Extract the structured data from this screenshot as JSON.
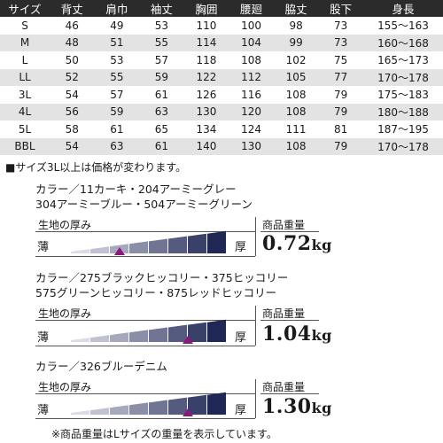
{
  "size_table": {
    "headers": [
      "サイズ",
      "背丈",
      "肩巾",
      "袖丈",
      "胸囲",
      "腰廻",
      "脇丈",
      "股下",
      "身長"
    ],
    "rows": [
      [
        "S",
        "46",
        "49",
        "53",
        "110",
        "100",
        "98",
        "73",
        "155〜163"
      ],
      [
        "M",
        "48",
        "51",
        "55",
        "114",
        "104",
        "99",
        "73",
        "160〜168"
      ],
      [
        "L",
        "50",
        "53",
        "57",
        "118",
        "108",
        "102",
        "75",
        "165〜173"
      ],
      [
        "LL",
        "52",
        "55",
        "59",
        "122",
        "112",
        "105",
        "77",
        "170〜178"
      ],
      [
        "3L",
        "54",
        "57",
        "61",
        "126",
        "116",
        "108",
        "79",
        "175〜183"
      ],
      [
        "4L",
        "56",
        "59",
        "63",
        "130",
        "120",
        "108",
        "79",
        "180〜188"
      ],
      [
        "5L",
        "58",
        "61",
        "65",
        "134",
        "124",
        "111",
        "81",
        "187〜195"
      ],
      [
        "BBL",
        "54",
        "63",
        "61",
        "140",
        "130",
        "108",
        "79",
        "170〜178"
      ]
    ]
  },
  "price_note": "■サイズ3L以上は価格が変わります。",
  "groups": [
    {
      "color_lines": [
        "カラー／11カーキ・204アーミーグレー",
        "304アーミーブルー・504アーミーグリーン"
      ],
      "thickness_label": "生地の厚み",
      "thin": "薄",
      "thick": "厚",
      "thickness_level": 3,
      "weight_label": "商品重量",
      "weight_value": "0.72",
      "weight_unit": "kg"
    },
    {
      "color_lines": [
        "カラー／275ブラックヒッコリー・375ヒッコリー",
        "575グリーンヒッコリー・875レッドヒッコリー"
      ],
      "thickness_label": "生地の厚み",
      "thin": "薄",
      "thick": "厚",
      "thickness_level": 6,
      "weight_label": "商品重量",
      "weight_value": "1.04",
      "weight_unit": "kg"
    },
    {
      "color_lines": [
        "カラー／326ブルーデニム"
      ],
      "thickness_label": "生地の厚み",
      "thin": "薄",
      "thick": "厚",
      "thickness_level": 6,
      "weight_label": "商品重量",
      "weight_value": "1.30",
      "weight_unit": "kg"
    }
  ],
  "footnote": "※商品重量はLサイズの重量を表示しています。",
  "colors": {
    "header_bg": "#2b2b2b",
    "row_stripe": "#e3e3e3",
    "bar_light": "#dcdce6",
    "bar_dark": "#1f2754",
    "marker": "#8a1a7a"
  }
}
